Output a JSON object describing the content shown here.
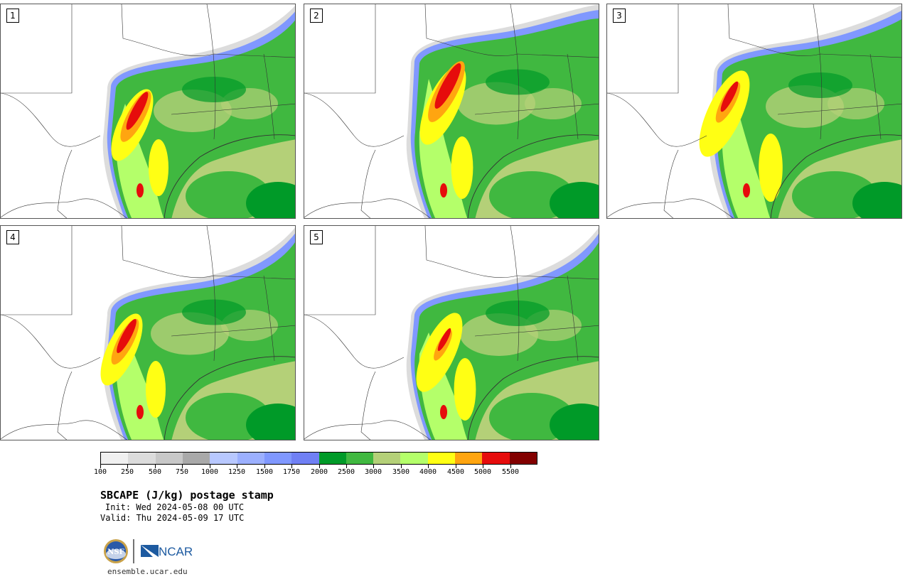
{
  "panels": [
    {
      "label": "1"
    },
    {
      "label": "2"
    },
    {
      "label": "3"
    },
    {
      "label": "4"
    },
    {
      "label": "5"
    }
  ],
  "colorbar": {
    "colors": [
      "#f0f0f0",
      "#dcdcdc",
      "#c8c8c8",
      "#a9a9a9",
      "#b8c8ff",
      "#9cb0ff",
      "#8098ff",
      "#7080f4",
      "#009a28",
      "#40b840",
      "#b4d078",
      "#b4ff6a",
      "#ffff14",
      "#ffa510",
      "#e60c0c",
      "#820000"
    ],
    "tick_labels": [
      "100",
      "250",
      "500",
      "750",
      "1000",
      "1250",
      "1500",
      "1750",
      "2000",
      "2500",
      "3000",
      "3500",
      "4000",
      "4500",
      "5000",
      "5500"
    ]
  },
  "title": "SBCAPE (J/kg) postage stamp",
  "init": "Init: Wed 2024-05-08 00 UTC",
  "valid": "Valid: Thu 2024-05-09 17 UTC",
  "logos": {
    "nsf": "NSF",
    "ncar": "NCAR"
  },
  "url": "ensemble.ucar.edu"
}
